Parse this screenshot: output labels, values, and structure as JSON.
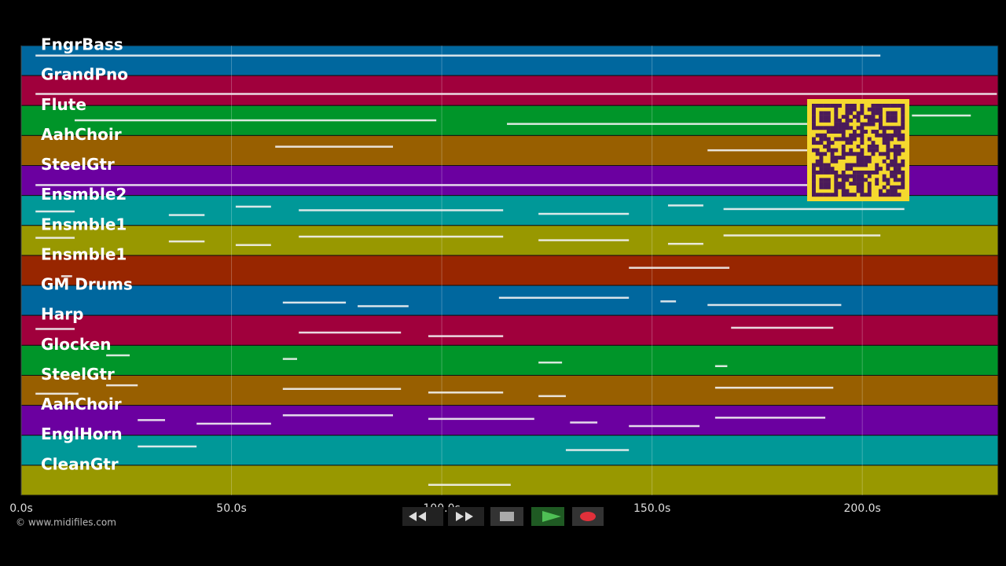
{
  "chart_data": {
    "type": "piano-roll",
    "xlim": [
      0,
      232.3
    ],
    "xticks": [
      {
        "value": 0,
        "label": "0.0s"
      },
      {
        "value": 50,
        "label": "50.0s"
      },
      {
        "value": 100,
        "label": "100.0s"
      },
      {
        "value": 150,
        "label": "150.0s"
      },
      {
        "value": 200,
        "label": "200.0s"
      }
    ],
    "grid": true,
    "tracks": [
      {
        "name": "FngrBass",
        "color": "#00679e",
        "notes": [
          [
            3.4,
            204.3
          ]
        ]
      },
      {
        "name": "GrandPno",
        "color": "#a0003c",
        "notes": [
          [
            3.4,
            232
          ]
        ]
      },
      {
        "name": "Flute",
        "color": "#009529",
        "notes": [
          [
            12.7,
            98.7
          ],
          [
            115.5,
            187.5
          ],
          [
            211.8,
            225.8
          ]
        ]
      },
      {
        "name": "AahChoir",
        "color": "#985f00",
        "notes": [
          [
            60.4,
            88.4
          ],
          [
            163.2,
            187.5
          ]
        ]
      },
      {
        "name": "SteelGtr",
        "color": "#6b00a0",
        "notes": [
          [
            3.4,
            210
          ]
        ]
      },
      {
        "name": "Ensmble2",
        "color": "#009898",
        "notes": [
          [
            3.4,
            12.7
          ],
          [
            35.1,
            43.6
          ],
          [
            51,
            59.4
          ],
          [
            66,
            114.6
          ],
          [
            123,
            144.5
          ],
          [
            153.8,
            162.2
          ],
          [
            167,
            210
          ]
        ]
      },
      {
        "name": "Ensmble1",
        "color": "#989800",
        "notes": [
          [
            3.4,
            12.7
          ],
          [
            35.1,
            43.6
          ],
          [
            51,
            59.4
          ],
          [
            66,
            114.6
          ],
          [
            123,
            144.5
          ],
          [
            153.8,
            162.2
          ],
          [
            167,
            204.3
          ]
        ]
      },
      {
        "name": "Ensmble1",
        "color": "#982600",
        "notes": [
          [
            9.5,
            12.1
          ],
          [
            144.5,
            168.4
          ]
        ]
      },
      {
        "name": "GM Drums",
        "color": "#00679e",
        "notes": [
          [
            62.2,
            77.2
          ],
          [
            80,
            92.1
          ],
          [
            113.6,
            144.5
          ],
          [
            152,
            155.7
          ],
          [
            163.2,
            195
          ]
        ]
      },
      {
        "name": "Harp",
        "color": "#a0003c",
        "notes": [
          [
            3.4,
            12.7
          ],
          [
            66,
            90.3
          ],
          [
            96.8,
            114.6
          ],
          [
            168.8,
            193.1
          ]
        ]
      },
      {
        "name": "Glocken",
        "color": "#009529",
        "notes": [
          [
            20.2,
            25.8
          ],
          [
            62.2,
            65.6
          ],
          [
            123,
            128.6
          ],
          [
            165,
            167.9
          ]
        ]
      },
      {
        "name": "SteelGtr",
        "color": "#985f00",
        "notes": [
          [
            3.4,
            13.6
          ],
          [
            20.2,
            27.7
          ],
          [
            62.2,
            90.3
          ],
          [
            96.8,
            114.6
          ],
          [
            123,
            129.5
          ],
          [
            165,
            193.1
          ]
        ]
      },
      {
        "name": "AahChoir",
        "color": "#6b00a0",
        "notes": [
          [
            27.7,
            34.2
          ],
          [
            41.7,
            59.4
          ],
          [
            62.2,
            88.4
          ],
          [
            96.8,
            122
          ],
          [
            130.5,
            137
          ],
          [
            144.5,
            161.3
          ],
          [
            165,
            191.2
          ]
        ]
      },
      {
        "name": "EnglHorn",
        "color": "#009898",
        "notes": [
          [
            27.7,
            41.7
          ],
          [
            129.5,
            144.5
          ]
        ]
      },
      {
        "name": "CleanGtr",
        "color": "#989800",
        "notes": [
          [
            96.8,
            116.4
          ]
        ]
      }
    ],
    "footer": "© www.midifiles.com"
  }
}
